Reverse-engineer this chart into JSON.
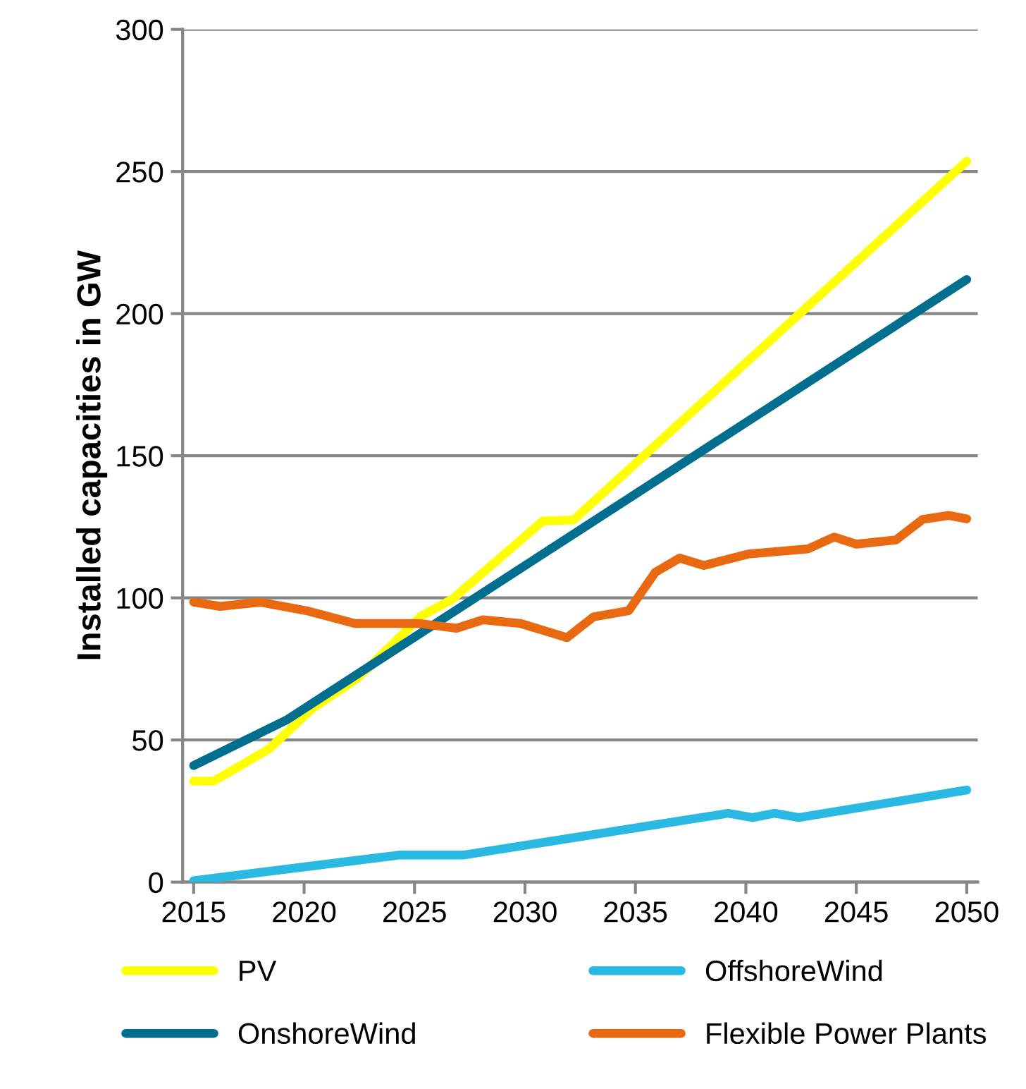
{
  "chart_data": {
    "type": "line",
    "ylabel": "Installed capacities in GW",
    "xlim": [
      2014.5,
      2050.5
    ],
    "xticks": [
      2015,
      2020,
      2025,
      2030,
      2035,
      2040,
      2045,
      2050
    ],
    "ylim": [
      0,
      300
    ],
    "yticks": [
      0,
      50,
      100,
      150,
      200,
      250,
      300
    ],
    "grid": "y",
    "legend": "bottom",
    "marker": "none",
    "line_style": "solid",
    "series": [
      {
        "name": "PV",
        "color": "#ffff00",
        "x": [
          2015,
          2015.9,
          2018.4,
          2020.4,
          2022.4,
          2025.3,
          2026.7,
          2030.8,
          2032.2,
          2050
        ],
        "values": [
          35.5,
          35.5,
          46.8,
          61.2,
          71.6,
          93.6,
          99.5,
          127,
          127.4,
          253.6
        ]
      },
      {
        "name": "OnshoreWind",
        "color": "#006e8f",
        "x": [
          2015,
          2019.2,
          2050
        ],
        "values": [
          41,
          57,
          212
        ]
      },
      {
        "name": "OffshoreWind",
        "color": "#29b9e3",
        "x": [
          2015,
          2024.3,
          2027.2,
          2039.2,
          2040.3,
          2041.3,
          2042.4,
          2050
        ],
        "values": [
          0.5,
          9.5,
          9.5,
          24.2,
          22.7,
          24.2,
          22.7,
          32.4
        ]
      },
      {
        "name": "Flexible Power Plants",
        "color": "#e8690f",
        "x": [
          2015,
          2016.2,
          2018,
          2020.1,
          2022.3,
          2025.2,
          2026.9,
          2028.1,
          2029.8,
          2031.9,
          2033.1,
          2034.7,
          2035.9,
          2037,
          2038.1,
          2040.1,
          2042.8,
          2044,
          2045,
          2046.8,
          2048,
          2049.2,
          2050
        ],
        "values": [
          98.5,
          97,
          98.5,
          95.5,
          91,
          91,
          89.3,
          92.3,
          91,
          86,
          93.3,
          95.5,
          109,
          114,
          111.4,
          115.4,
          117.2,
          121.4,
          118.9,
          120.4,
          127.6,
          129,
          127.8
        ]
      }
    ]
  }
}
